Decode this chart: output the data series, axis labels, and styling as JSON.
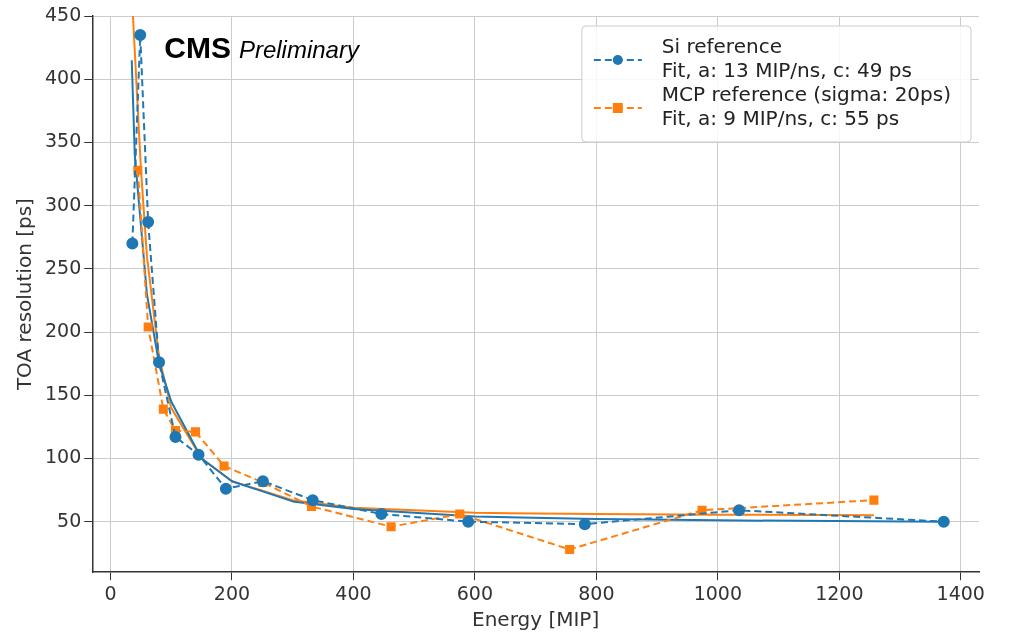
{
  "chart_data": {
    "type": "line",
    "xlabel": "Energy [MIP]",
    "ylabel": "TOA resolution [ps]",
    "annotations": [
      "CMS",
      "Preliminary"
    ],
    "xlim": [
      -30,
      1430
    ],
    "xticks": [
      0,
      200,
      400,
      600,
      800,
      1000,
      1200,
      1400
    ],
    "ylim": [
      10,
      450
    ],
    "yticks": [
      50,
      100,
      150,
      200,
      250,
      300,
      350,
      400,
      450
    ],
    "grid": true,
    "legend": "top right",
    "series": [
      {
        "name": "Si reference\nFit, a: 13 MIP/ns, c: 49 ps",
        "color": "#1f77b4",
        "marker": "circle",
        "line_style": "dashed",
        "x": [
          36,
          49,
          62,
          80,
          107,
          145,
          190,
          251,
          333,
          446,
          589,
          781,
          1035,
          1372
        ],
        "values": [
          270,
          435,
          287,
          176,
          117,
          103,
          76,
          82,
          67,
          56,
          50,
          48,
          59,
          50
        ]
      },
      {
        "name": "MCP reference (sigma: 20ps)\nFit, a: 9 MIP/ns, c: 55 ps",
        "color": "#ff7f0e",
        "marker": "square",
        "line_style": "dashed",
        "x": [
          45,
          62,
          87,
          107,
          140,
          187,
          251,
          331,
          462,
          575,
          756,
          974,
          1257
        ],
        "values": [
          328,
          204,
          139,
          122,
          121,
          94,
          81,
          62,
          46,
          56,
          28,
          59,
          67
        ]
      },
      {
        "color": "#1f77b4",
        "marker": "none",
        "line_style": "solid",
        "x": [
          35,
          40,
          60,
          80,
          100,
          150,
          200,
          300,
          400,
          600,
          800,
          1000,
          1372
        ],
        "values": [
          415,
          340,
          230,
          175,
          145,
          100,
          82,
          66,
          60,
          54,
          52,
          51,
          50
        ]
      },
      {
        "color": "#ff7f0e",
        "marker": "none",
        "line_style": "solid",
        "x": [
          37,
          50,
          60,
          80,
          100,
          150,
          200,
          300,
          400,
          600,
          800,
          1000,
          1257
        ],
        "values": [
          450,
          330,
          260,
          180,
          140,
          100,
          82,
          67,
          61,
          57,
          56,
          55.5,
          55
        ]
      }
    ]
  }
}
